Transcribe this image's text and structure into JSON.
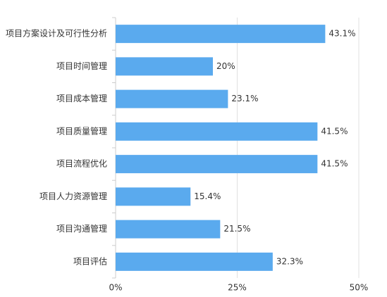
{
  "chart_data": {
    "type": "bar",
    "orientation": "horizontal",
    "categories": [
      "项目方案设计及可行性分析",
      "项目时间管理",
      "项目成本管理",
      "项目质量管理",
      "项目流程优化",
      "项目人力资源管理",
      "项目沟通管理",
      "项目评估"
    ],
    "values": [
      43.1,
      20,
      23.1,
      41.5,
      41.5,
      15.4,
      21.5,
      32.3
    ],
    "value_labels": [
      "43.1%",
      "20%",
      "23.1%",
      "41.5%",
      "41.5%",
      "15.4%",
      "21.5%",
      "32.3%"
    ],
    "color": "#5aaaee",
    "xlim": [
      0,
      50
    ],
    "xticks": [
      {
        "value": 0,
        "label": "0%"
      },
      {
        "value": 25,
        "label": "25%"
      },
      {
        "value": 50,
        "label": "50%"
      }
    ],
    "grid": true
  }
}
